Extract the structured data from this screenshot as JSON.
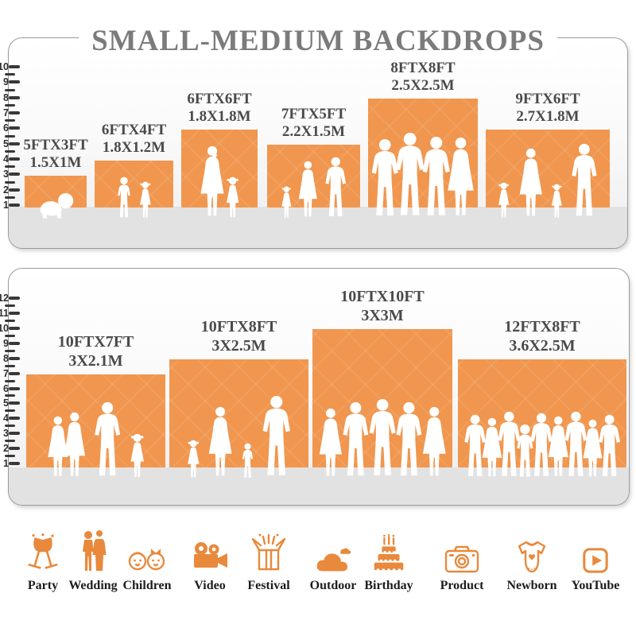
{
  "title": "SMALL-MEDIUM BACKDROPS",
  "panels": [
    {
      "name": "small-medium-top",
      "ruler": {
        "numbers": [
          "10",
          "9",
          "8",
          "7",
          "6",
          "5",
          "4",
          "3",
          "2",
          "1"
        ]
      },
      "backdrops": [
        {
          "size_ft": "5FTX3FT",
          "size_m": "1.5X1M"
        },
        {
          "size_ft": "6FTX4FT",
          "size_m": "1.8X1.2M"
        },
        {
          "size_ft": "6FTX6FT",
          "size_m": "1.8X1.8M"
        },
        {
          "size_ft": "7FTX5FT",
          "size_m": "2.2X1.5M"
        },
        {
          "size_ft": "8FTX8FT",
          "size_m": "2.5X2.5M"
        },
        {
          "size_ft": "9FTX6FT",
          "size_m": "2.7X1.8M"
        }
      ]
    },
    {
      "name": "small-medium-bottom",
      "ruler": {
        "numbers": [
          "12",
          "11",
          "10",
          "9",
          "8",
          "7",
          "6",
          "5",
          "4",
          "3",
          "2",
          "1"
        ]
      },
      "backdrops": [
        {
          "size_ft": "10FTX7FT",
          "size_m": "3X2.1M"
        },
        {
          "size_ft": "10FTX8FT",
          "size_m": "3X2.5M"
        },
        {
          "size_ft": "10FTX10FT",
          "size_m": "3X3M"
        },
        {
          "size_ft": "12FTX8FT",
          "size_m": "3.6X2.5M"
        }
      ]
    }
  ],
  "categories": [
    {
      "label": "Party",
      "icon": "party-icon"
    },
    {
      "label": "Wedding",
      "icon": "wedding-icon"
    },
    {
      "label": "Children",
      "icon": "children-icon"
    },
    {
      "label": "Video",
      "icon": "video-icon"
    },
    {
      "label": "Festival",
      "icon": "festival-icon"
    },
    {
      "label": "Outdoor",
      "icon": "outdoor-icon"
    },
    {
      "label": "Birthday",
      "icon": "birthday-icon"
    },
    {
      "label": "Product",
      "icon": "product-icon"
    },
    {
      "label": "Newborn",
      "icon": "newborn-icon"
    },
    {
      "label": "YouTube",
      "icon": "youtube-icon"
    }
  ],
  "colors": {
    "backdrop_orange": "#F0964E",
    "icon_orange": "#E8893C",
    "title_gray": "#7B7B7B",
    "label_gray": "#4A4A4A",
    "ruler_dark": "#383838",
    "ground_gray": "#E2E2E2",
    "panel_border": "#9B9B9B"
  }
}
